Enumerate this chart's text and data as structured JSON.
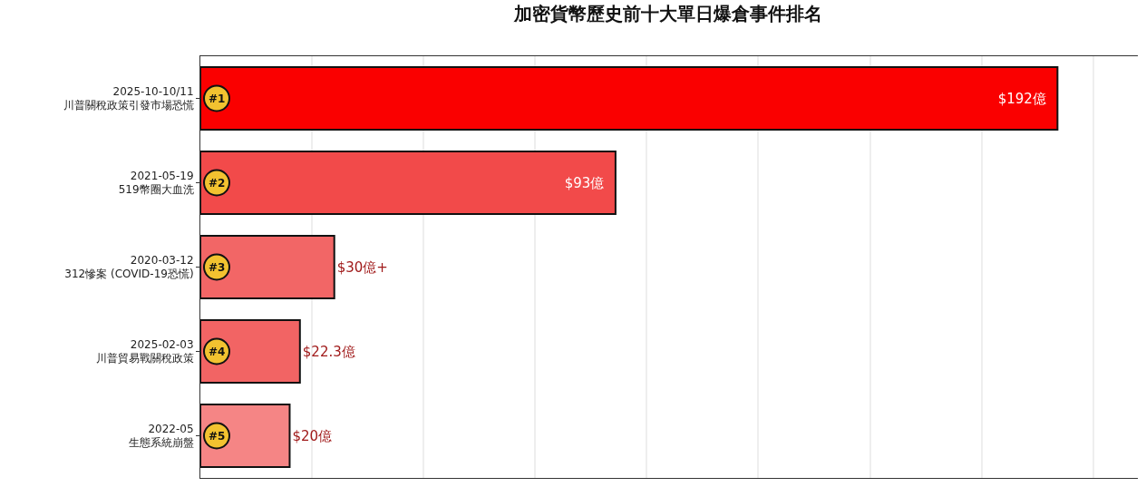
{
  "chart_data": {
    "type": "bar",
    "orientation": "horizontal",
    "title": "加密貨幣歷史前十大單日爆倉事件排名",
    "categories": [
      "2025-10-10/11\n川普關稅政策引發市場恐慌",
      "2021-05-19\n519幣圈大血洗",
      "2020-03-12\n312慘案 (COVID-19恐慌)",
      "2025-02-03\n川普貿易戰關稅政策",
      "2022-05\n生態系統崩盤"
    ],
    "values": [
      192,
      93,
      30,
      22.3,
      20
    ],
    "value_labels": [
      "$192億",
      "$93億",
      "$30億+",
      "$22.3億",
      "$20億"
    ],
    "colors": [
      "#fa0000",
      "#f24a4a",
      "#f26666",
      "#f26464",
      "#f58585"
    ],
    "xlim": [
      0,
      210
    ],
    "xticks": [
      {
        "value": 0,
        "label": null
      },
      {
        "value": 25,
        "label": null
      },
      {
        "value": 50,
        "label": null
      },
      {
        "value": 75,
        "label": null
      },
      {
        "value": 100,
        "label": null
      },
      {
        "value": 125,
        "label": null
      },
      {
        "value": 150,
        "label": null
      },
      {
        "value": 175,
        "label": null
      },
      {
        "value": 200,
        "label": null
      }
    ],
    "tick_labels": "y",
    "grid": "x",
    "annotations": [
      {
        "text": "#1",
        "y": "2025-10-10/11\n川普關稅政策引發市場恐慌"
      },
      {
        "text": "#2",
        "y": "2021-05-19\n519幣圈大血洗"
      },
      {
        "text": "#3",
        "y": "2020-03-12\n312慘案 (COVID-19恐慌)"
      },
      {
        "text": "#4",
        "y": "2025-02-03\n川普貿易戰關稅政策"
      },
      {
        "text": "#5",
        "y": "2022-05\n生態系統崩盤"
      }
    ]
  }
}
